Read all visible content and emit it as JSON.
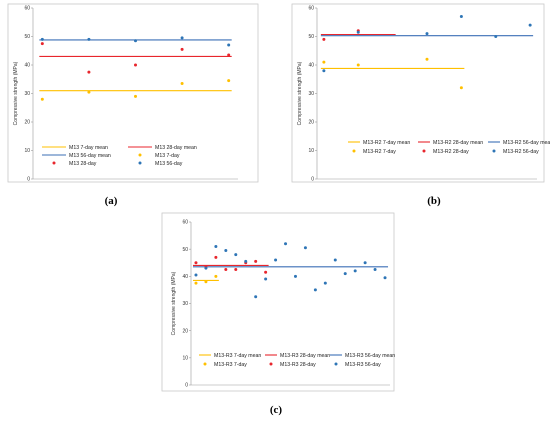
{
  "chart_data": [
    {
      "type": "scatter",
      "panel_label": "(a)",
      "ylabel": "Compressive strength (MPa)",
      "ylim": [
        0,
        60
      ],
      "yticks": [
        "0",
        "10",
        "20",
        "30",
        "40",
        "50",
        "60"
      ],
      "x": [
        1,
        2,
        3,
        4,
        5
      ],
      "xlim": [
        0.8,
        5.2
      ],
      "legend_position": "bottom",
      "legend_columns": 2,
      "series": [
        {
          "name": "M13 7-day mean",
          "kind": "line",
          "color": "#ffc000",
          "y": 31,
          "x_range": [
            1,
            5
          ]
        },
        {
          "name": "M13 28-day mean",
          "kind": "line",
          "color": "#e8262d",
          "y": 43,
          "x_range": [
            1,
            5
          ]
        },
        {
          "name": "M13 56-day mean",
          "kind": "line",
          "color": "#3b6fb6",
          "y": 48.8,
          "x_range": [
            1,
            5
          ]
        },
        {
          "name": "M13 7-day",
          "kind": "points",
          "color": "#ffc000",
          "values": [
            28,
            30.5,
            29,
            33.5,
            34.5
          ]
        },
        {
          "name": "M13 28-day",
          "kind": "points",
          "color": "#e8262d",
          "values": [
            47.5,
            37.5,
            40,
            45.5,
            43.5
          ]
        },
        {
          "name": "M13 56-day",
          "kind": "points",
          "color": "#2e75b6",
          "values": [
            49,
            49,
            48.5,
            49.5,
            47
          ]
        }
      ]
    },
    {
      "type": "scatter",
      "panel_label": "(b)",
      "ylabel": "Compressive strength (MPa)",
      "ylim": [
        0,
        60
      ],
      "yticks": [
        "0",
        "10",
        "20",
        "30",
        "40",
        "50",
        "60"
      ],
      "x": [
        1,
        2,
        3,
        4,
        5,
        6,
        7
      ],
      "xlim": [
        0.8,
        7.2
      ],
      "legend_position": "bottom",
      "legend_columns": 3,
      "series": [
        {
          "name": "M13-R2 7-day mean",
          "kind": "line",
          "color": "#ffc000",
          "y": 38.8,
          "x_range": [
            1,
            5
          ]
        },
        {
          "name": "M13-R2 28-day mean",
          "kind": "line",
          "color": "#e8262d",
          "y": 50.7,
          "x_range": [
            1,
            3
          ]
        },
        {
          "name": "M13-R2 56-day mean",
          "kind": "line",
          "color": "#3b6fb6",
          "y": 50.3,
          "x_range": [
            1,
            7
          ]
        },
        {
          "name": "M13-R2 7-day",
          "kind": "points",
          "color": "#ffc000",
          "x": [
            1,
            2,
            4,
            5
          ],
          "values": [
            41,
            40,
            42,
            32
          ]
        },
        {
          "name": "M13-R2 28-day",
          "kind": "points",
          "color": "#e8262d",
          "x": [
            1,
            2
          ],
          "values": [
            49,
            52
          ]
        },
        {
          "name": "M13-R2 56-day",
          "kind": "points",
          "color": "#2e75b6",
          "x": [
            1,
            2,
            4,
            5,
            6,
            7
          ],
          "values": [
            38,
            51.5,
            51,
            57,
            50,
            54
          ]
        }
      ]
    },
    {
      "type": "scatter",
      "panel_label": "(c)",
      "ylabel": "Compressive strength (MPa)",
      "ylim": [
        0,
        60
      ],
      "yticks": [
        "0",
        "10",
        "20",
        "30",
        "40",
        "50",
        "60"
      ],
      "x": [
        1,
        2,
        3,
        4,
        5,
        6,
        7,
        8,
        9,
        10,
        11,
        12,
        13,
        14,
        15,
        16,
        17,
        18,
        19,
        20
      ],
      "xlim": [
        0.5,
        20.5
      ],
      "legend_position": "bottom",
      "legend_columns": 3,
      "series": [
        {
          "name": "M13-R3 7-day mean",
          "kind": "line",
          "color": "#ffc000",
          "y": 38.5,
          "x_range": [
            1,
            3
          ]
        },
        {
          "name": "M13-R3 28-day mean",
          "kind": "line",
          "color": "#e8262d",
          "y": 44,
          "x_range": [
            1,
            8
          ]
        },
        {
          "name": "M13-R3 56-day mean",
          "kind": "line",
          "color": "#3b6fb6",
          "y": 43.5,
          "x_range": [
            1,
            20
          ]
        },
        {
          "name": "M13-R3 7-day",
          "kind": "points",
          "color": "#ffc000",
          "x": [
            1,
            2,
            3
          ],
          "values": [
            37.5,
            38,
            40
          ]
        },
        {
          "name": "M13-R3 28-day",
          "kind": "points",
          "color": "#e8262d",
          "x": [
            1,
            2,
            3,
            4,
            5,
            6,
            7,
            8
          ],
          "values": [
            45,
            43.5,
            47,
            42.5,
            42.5,
            45,
            45.5,
            41.5
          ]
        },
        {
          "name": "M13-R3 56-day",
          "kind": "points",
          "color": "#2e75b6",
          "x": [
            1,
            2,
            3,
            4,
            5,
            6,
            7,
            8,
            9,
            10,
            11,
            12,
            13,
            14,
            15,
            16,
            17,
            18,
            19,
            20
          ],
          "values": [
            40.5,
            43,
            51,
            49.5,
            48,
            45.5,
            32.5,
            39,
            46,
            52,
            40,
            50.5,
            35,
            37.5,
            46,
            41,
            42,
            45,
            42.5,
            39.5
          ]
        }
      ]
    }
  ]
}
